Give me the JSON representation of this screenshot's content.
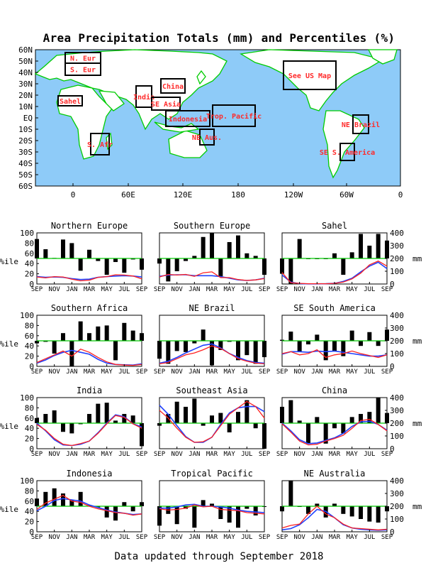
{
  "title": "Area Precipitation Totals (mm) and Percentiles (%)",
  "footer": "Data updated through September 2018",
  "colors": {
    "ocean": "#8ecbf8",
    "land": "#ffffff",
    "coast": "#00cc00",
    "box": "#000000",
    "region_label": "#ff2a2a",
    "pct_line": "#00c800",
    "obs_line": "#ff2020",
    "clim_line": "#2040ff",
    "bar": "#000000"
  },
  "map": {
    "lat_labels": [
      "60N",
      "50N",
      "40N",
      "30N",
      "20N",
      "10N",
      "EQ",
      "10S",
      "20S",
      "30S",
      "40S",
      "50S",
      "60S"
    ],
    "lon_labels": [
      "0",
      "60E",
      "120E",
      "180",
      "120W",
      "60W",
      "0"
    ],
    "regions": [
      {
        "label": "N. Eur"
      },
      {
        "label": "S. Eur"
      },
      {
        "label": "Sahel"
      },
      {
        "label": "S. Afr"
      },
      {
        "label": "India"
      },
      {
        "label": "SE Asia"
      },
      {
        "label": "China"
      },
      {
        "label": "Indonesia"
      },
      {
        "label": "Trop. Pacific"
      },
      {
        "label": "NE Aus."
      },
      {
        "label": "See US Map"
      },
      {
        "label": "NE Brazil"
      },
      {
        "label": "SE S. America"
      }
    ]
  },
  "panel_axes": {
    "months": [
      "SEP",
      "NOV",
      "JAN",
      "MAR",
      "MAY",
      "JUL",
      "SEP"
    ],
    "pct_ticks": [
      "0",
      "20",
      "40",
      "60",
      "80",
      "100"
    ],
    "mm_ticks": [
      "0",
      "100",
      "200",
      "300",
      "400"
    ],
    "left_unit": "%ile",
    "right_unit": "mm"
  },
  "chart_data": [
    {
      "type": "bar+line",
      "title": "Northern Europe",
      "bars_percentile": [
        88,
        68,
        51,
        87,
        80,
        26,
        67,
        45,
        18,
        43,
        22,
        48,
        28
      ],
      "total_mm": [
        55,
        48,
        58,
        55,
        38,
        25,
        30,
        52,
        58,
        72,
        70,
        62,
        40
      ],
      "climatology_mm": [
        58,
        52,
        55,
        52,
        42,
        35,
        38,
        52,
        58,
        62,
        65,
        62,
        55
      ]
    },
    {
      "type": "bar+line",
      "title": "Southern Europe",
      "bars_percentile": [
        40,
        5,
        25,
        45,
        55,
        92,
        100,
        15,
        82,
        95,
        60,
        55,
        18
      ],
      "total_mm": [
        55,
        75,
        70,
        75,
        60,
        88,
        95,
        50,
        50,
        35,
        28,
        32,
        42
      ],
      "climatology_mm": [
        60,
        70,
        72,
        72,
        65,
        65,
        65,
        58,
        45,
        32,
        28,
        32,
        45
      ]
    },
    {
      "type": "bar+line",
      "title": "Sahel",
      "bars_percentile": [
        20,
        0,
        88,
        50,
        50,
        50,
        60,
        18,
        62,
        98,
        75,
        98,
        85
      ],
      "total_mm": [
        90,
        10,
        5,
        2,
        2,
        2,
        5,
        15,
        40,
        85,
        150,
        180,
        140
      ],
      "climatology_mm": [
        70,
        15,
        3,
        1,
        1,
        2,
        5,
        20,
        45,
        95,
        140,
        170,
        120
      ]
    },
    {
      "type": "bar+line",
      "title": "Southern Africa",
      "bars_percentile": [
        45,
        48,
        25,
        65,
        0,
        88,
        65,
        78,
        80,
        12,
        85,
        70,
        65
      ],
      "total_mm": [
        30,
        60,
        90,
        120,
        80,
        135,
        110,
        70,
        35,
        15,
        10,
        8,
        15
      ],
      "climatology_mm": [
        25,
        50,
        85,
        110,
        125,
        110,
        95,
        55,
        25,
        15,
        12,
        10,
        20
      ],
      "ylim_mm": [
        0,
        400
      ]
    },
    {
      "type": "bar+line",
      "title": "NE Brazil",
      "bars_percentile": [
        15,
        5,
        30,
        28,
        45,
        72,
        2,
        32,
        48,
        12,
        22,
        5,
        18
      ],
      "total_mm": [
        20,
        30,
        60,
        90,
        105,
        130,
        160,
        140,
        100,
        60,
        40,
        25,
        20
      ],
      "climatology_mm": [
        25,
        40,
        70,
        105,
        135,
        165,
        175,
        145,
        100,
        70,
        45,
        30,
        25
      ]
    },
    {
      "type": "bar+line",
      "title": "SE South America",
      "bars_percentile": [
        52,
        68,
        28,
        43,
        62,
        12,
        30,
        20,
        70,
        40,
        67,
        40,
        72
      ],
      "total_mm": [
        100,
        115,
        90,
        100,
        130,
        70,
        90,
        100,
        120,
        100,
        85,
        70,
        90
      ],
      "climatology_mm": [
        95,
        115,
        115,
        110,
        120,
        115,
        120,
        110,
        100,
        90,
        80,
        80,
        90
      ]
    },
    {
      "type": "bar+line",
      "title": "India",
      "bars_percentile": [
        60,
        68,
        75,
        33,
        30,
        48,
        68,
        88,
        90,
        55,
        68,
        65,
        5
      ],
      "total_mm": [
        190,
        145,
        80,
        35,
        25,
        40,
        60,
        120,
        195,
        260,
        245,
        195,
        160
      ],
      "climatology_mm": [
        200,
        140,
        70,
        30,
        25,
        35,
        60,
        125,
        200,
        265,
        250,
        195,
        170
      ]
    },
    {
      "type": "bar+line",
      "title": "Southeast Asia",
      "bars_percentile": [
        45,
        68,
        92,
        82,
        98,
        45,
        65,
        70,
        32,
        72,
        95,
        40,
        0
      ],
      "total_mm": [
        300,
        240,
        160,
        90,
        50,
        55,
        90,
        180,
        270,
        320,
        370,
        330,
        240
      ],
      "climatology_mm": [
        340,
        270,
        180,
        95,
        50,
        50,
        90,
        190,
        280,
        320,
        330,
        330,
        290
      ]
    },
    {
      "type": "bar+line",
      "title": "China",
      "bars_percentile": [
        82,
        95,
        55,
        10,
        62,
        10,
        40,
        30,
        62,
        68,
        72,
        100,
        70
      ],
      "total_mm": [
        195,
        130,
        60,
        30,
        35,
        60,
        80,
        105,
        160,
        220,
        230,
        190,
        140
      ],
      "climatology_mm": [
        200,
        140,
        70,
        40,
        45,
        65,
        85,
        120,
        175,
        210,
        215,
        190,
        145
      ]
    },
    {
      "type": "bar+line",
      "title": "Indonesia",
      "bars_percentile": [
        65,
        78,
        85,
        75,
        62,
        78,
        52,
        48,
        28,
        22,
        58,
        40,
        58
      ],
      "total_mm": [
        175,
        225,
        255,
        285,
        240,
        230,
        200,
        180,
        165,
        150,
        145,
        130,
        140
      ],
      "climatology_mm": [
        165,
        200,
        245,
        260,
        250,
        240,
        210,
        190,
        170,
        155,
        145,
        135,
        140
      ]
    },
    {
      "type": "bar+line",
      "title": "Tropical Pacific",
      "bars_percentile": [
        12,
        35,
        15,
        45,
        8,
        62,
        55,
        25,
        18,
        8,
        45,
        32,
        50
      ],
      "total_mm": [
        180,
        170,
        175,
        185,
        210,
        195,
        200,
        175,
        170,
        165,
        150,
        145,
        140
      ],
      "climatology_mm": [
        185,
        185,
        195,
        210,
        215,
        200,
        200,
        195,
        185,
        170,
        160,
        155,
        150
      ]
    },
    {
      "type": "bar+line",
      "title": "NE Australia",
      "bars_percentile": [
        40,
        100,
        50,
        35,
        55,
        28,
        55,
        35,
        30,
        25,
        20,
        18,
        40
      ],
      "total_mm": [
        30,
        50,
        60,
        140,
        200,
        140,
        110,
        60,
        30,
        25,
        20,
        15,
        20
      ],
      "climatology_mm": [
        15,
        25,
        55,
        110,
        175,
        160,
        110,
        55,
        30,
        20,
        15,
        12,
        15
      ]
    }
  ]
}
